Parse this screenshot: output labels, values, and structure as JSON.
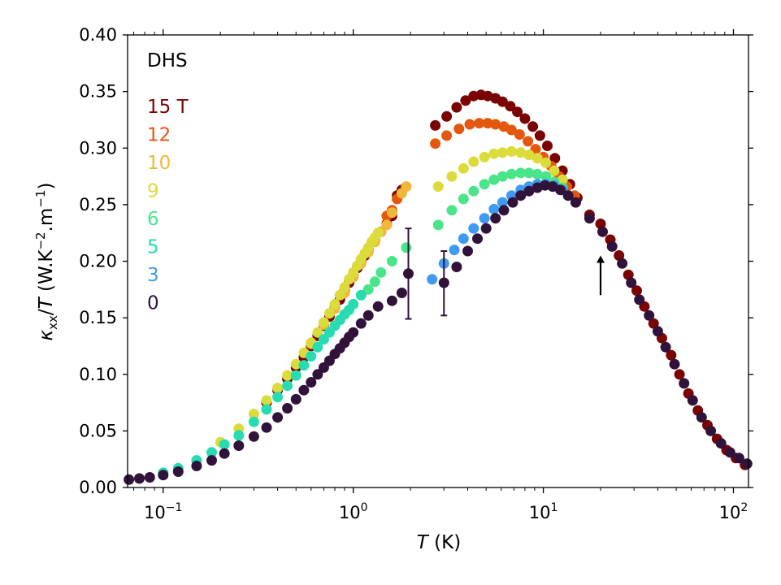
{
  "chart_data": {
    "type": "scatter",
    "title": "",
    "annotation_label": "DHS",
    "xscale": "log",
    "xlim": [
      0.065,
      120
    ],
    "ylim": [
      0.0,
      0.4
    ],
    "xlabel": {
      "var": "T",
      "unit": " (K)"
    },
    "ylabel": {
      "kappa": "κ",
      "sub": "xx",
      "slash": "/",
      "var": "T",
      "unit1": " (W.K",
      "exp1": "−2",
      "unit2": ".m",
      "exp2": "−1",
      "close": ")"
    },
    "x_ticks": [
      {
        "value": 0.1,
        "base": "10",
        "exp": "−1"
      },
      {
        "value": 1,
        "base": "10",
        "exp": "0"
      },
      {
        "value": 10,
        "base": "10",
        "exp": "1"
      },
      {
        "value": 100,
        "base": "10",
        "exp": "2"
      }
    ],
    "y_ticks": [
      {
        "value": 0.0,
        "label": "0.00"
      },
      {
        "value": 0.05,
        "label": "0.05"
      },
      {
        "value": 0.1,
        "label": "0.10"
      },
      {
        "value": 0.15,
        "label": "0.15"
      },
      {
        "value": 0.2,
        "label": "0.20"
      },
      {
        "value": 0.25,
        "label": "0.25"
      },
      {
        "value": 0.3,
        "label": "0.30"
      },
      {
        "value": 0.35,
        "label": "0.35"
      },
      {
        "value": 0.4,
        "label": "0.40"
      }
    ],
    "legend": [
      {
        "label": "15 T",
        "color": "#7a0403"
      },
      {
        "label": "12",
        "color": "#e4570f"
      },
      {
        "label": "10",
        "color": "#f0b83a"
      },
      {
        "label": "9",
        "color": "#dbdc3c"
      },
      {
        "label": "6",
        "color": "#4ae58a"
      },
      {
        "label": "5",
        "color": "#26dcb0"
      },
      {
        "label": "3",
        "color": "#3f9bf0"
      },
      {
        "label": "0",
        "color": "#30123b"
      }
    ],
    "series": [
      {
        "name": "15 T",
        "color": "#7a0403",
        "points": [
          [
            2.7,
            0.32
          ],
          [
            3.1,
            0.328
          ],
          [
            3.5,
            0.336
          ],
          [
            3.9,
            0.342
          ],
          [
            4.3,
            0.346
          ],
          [
            4.7,
            0.347
          ],
          [
            5.1,
            0.346
          ],
          [
            5.6,
            0.344
          ],
          [
            6.1,
            0.341
          ],
          [
            6.7,
            0.337
          ],
          [
            7.3,
            0.332
          ],
          [
            8.0,
            0.326
          ],
          [
            8.8,
            0.319
          ],
          [
            9.6,
            0.311
          ],
          [
            10.5,
            0.302
          ],
          [
            11.5,
            0.291
          ],
          [
            12.6,
            0.28
          ],
          [
            13.8,
            0.268
          ],
          [
            15.1,
            0.256
          ],
          [
            17.5,
            0.241
          ],
          [
            20.0,
            0.233
          ],
          [
            22.5,
            0.219
          ],
          [
            25.0,
            0.205
          ],
          [
            28.0,
            0.188
          ],
          [
            31.0,
            0.174
          ],
          [
            34.0,
            0.16
          ],
          [
            38.0,
            0.145
          ],
          [
            42.0,
            0.132
          ],
          [
            47.0,
            0.117
          ],
          [
            52.0,
            0.1
          ],
          [
            58.0,
            0.083
          ],
          [
            65.0,
            0.068
          ],
          [
            73.0,
            0.055
          ],
          [
            82.0,
            0.043
          ],
          [
            92.0,
            0.033
          ],
          [
            103.0,
            0.026
          ],
          [
            115.0,
            0.02
          ],
          [
            0.35,
            0.075
          ],
          [
            0.4,
            0.086
          ],
          [
            0.45,
            0.096
          ],
          [
            0.5,
            0.106
          ],
          [
            0.55,
            0.115
          ],
          [
            0.6,
            0.125
          ],
          [
            0.65,
            0.134
          ],
          [
            0.7,
            0.143
          ],
          [
            0.75,
            0.151
          ],
          [
            0.8,
            0.159
          ],
          [
            0.85,
            0.166
          ],
          [
            0.9,
            0.174
          ],
          [
            0.95,
            0.181
          ],
          [
            1.0,
            0.188
          ],
          [
            1.05,
            0.194
          ],
          [
            1.1,
            0.2
          ],
          [
            1.15,
            0.205
          ],
          [
            1.2,
            0.21
          ],
          [
            1.3,
            0.219
          ],
          [
            1.4,
            0.226
          ],
          [
            1.5,
            0.233
          ],
          [
            1.6,
            0.24
          ],
          [
            1.7,
            0.258
          ],
          [
            1.8,
            0.263
          ]
        ]
      },
      {
        "name": "12",
        "color": "#e4570f",
        "points": [
          [
            2.7,
            0.304
          ],
          [
            3.1,
            0.311
          ],
          [
            3.6,
            0.317
          ],
          [
            4.1,
            0.321
          ],
          [
            4.6,
            0.322
          ],
          [
            5.1,
            0.322
          ],
          [
            5.6,
            0.321
          ],
          [
            6.2,
            0.319
          ],
          [
            6.8,
            0.316
          ],
          [
            7.5,
            0.312
          ],
          [
            8.3,
            0.306
          ],
          [
            9.1,
            0.299
          ],
          [
            10.0,
            0.292
          ],
          [
            11.0,
            0.284
          ],
          [
            12.1,
            0.275
          ],
          [
            13.3,
            0.266
          ],
          [
            14.6,
            0.258
          ],
          [
            1.5,
            0.24
          ],
          [
            1.6,
            0.245
          ],
          [
            1.7,
            0.255
          ]
        ]
      },
      {
        "name": "10",
        "color": "#f0b83a",
        "points": [
          [
            0.6,
            0.127
          ],
          [
            0.7,
            0.144
          ],
          [
            0.8,
            0.158
          ],
          [
            0.9,
            0.172
          ],
          [
            1.0,
            0.186
          ],
          [
            1.1,
            0.198
          ],
          [
            1.2,
            0.208
          ],
          [
            1.3,
            0.217
          ],
          [
            1.4,
            0.226
          ],
          [
            1.5,
            0.232
          ],
          [
            1.6,
            0.243
          ],
          [
            1.8,
            0.26
          ],
          [
            1.9,
            0.266
          ]
        ]
      },
      {
        "name": "9",
        "color": "#dbdc3c",
        "points": [
          [
            2.8,
            0.266
          ],
          [
            3.3,
            0.275
          ],
          [
            3.8,
            0.282
          ],
          [
            4.3,
            0.288
          ],
          [
            4.9,
            0.292
          ],
          [
            5.5,
            0.295
          ],
          [
            6.1,
            0.296
          ],
          [
            6.8,
            0.297
          ],
          [
            7.6,
            0.296
          ],
          [
            8.4,
            0.294
          ],
          [
            9.3,
            0.291
          ],
          [
            10.3,
            0.287
          ],
          [
            11.4,
            0.28
          ],
          [
            12.6,
            0.272
          ],
          [
            0.2,
            0.04
          ],
          [
            0.25,
            0.052
          ],
          [
            0.3,
            0.065
          ],
          [
            0.35,
            0.077
          ],
          [
            0.4,
            0.088
          ],
          [
            0.45,
            0.099
          ],
          [
            0.5,
            0.109
          ],
          [
            0.55,
            0.119
          ],
          [
            0.6,
            0.128
          ],
          [
            0.65,
            0.137
          ],
          [
            0.7,
            0.146
          ],
          [
            0.75,
            0.154
          ],
          [
            0.8,
            0.162
          ],
          [
            0.85,
            0.17
          ],
          [
            0.9,
            0.177
          ],
          [
            0.95,
            0.184
          ],
          [
            1.0,
            0.19
          ],
          [
            1.05,
            0.196
          ],
          [
            1.1,
            0.202
          ],
          [
            1.15,
            0.207
          ],
          [
            1.2,
            0.212
          ],
          [
            1.25,
            0.217
          ],
          [
            1.3,
            0.221
          ],
          [
            1.35,
            0.225
          ]
        ]
      },
      {
        "name": "6",
        "color": "#4ae58a",
        "points": [
          [
            2.8,
            0.232
          ],
          [
            3.3,
            0.245
          ],
          [
            3.8,
            0.255
          ],
          [
            4.3,
            0.262
          ],
          [
            4.9,
            0.268
          ],
          [
            5.5,
            0.272
          ],
          [
            6.1,
            0.275
          ],
          [
            6.8,
            0.277
          ],
          [
            7.6,
            0.278
          ],
          [
            8.4,
            0.278
          ],
          [
            9.3,
            0.277
          ],
          [
            10.3,
            0.275
          ],
          [
            11.4,
            0.27
          ],
          [
            12.6,
            0.265
          ],
          [
            1.2,
            0.175
          ],
          [
            1.3,
            0.182
          ],
          [
            1.4,
            0.19
          ],
          [
            1.6,
            0.2
          ],
          [
            1.9,
            0.212
          ]
        ]
      },
      {
        "name": "5",
        "color": "#26dcb0",
        "points": [
          [
            0.1,
            0.013
          ],
          [
            0.12,
            0.017
          ],
          [
            0.15,
            0.024
          ],
          [
            0.18,
            0.031
          ],
          [
            0.21,
            0.038
          ],
          [
            0.25,
            0.046
          ],
          [
            0.3,
            0.058
          ],
          [
            0.35,
            0.069
          ],
          [
            0.4,
            0.08
          ],
          [
            0.45,
            0.09
          ],
          [
            0.5,
            0.099
          ],
          [
            0.55,
            0.108
          ],
          [
            0.6,
            0.116
          ],
          [
            0.65,
            0.124
          ],
          [
            0.7,
            0.131
          ],
          [
            0.75,
            0.137
          ],
          [
            0.8,
            0.143
          ],
          [
            0.85,
            0.148
          ],
          [
            0.9,
            0.153
          ],
          [
            0.95,
            0.157
          ],
          [
            1.0,
            0.162
          ],
          [
            1.1,
            0.17
          ]
        ]
      },
      {
        "name": "3",
        "color": "#3f9bf0",
        "points": [
          [
            2.6,
            0.184
          ],
          [
            3.0,
            0.198
          ],
          [
            3.4,
            0.21
          ],
          [
            3.8,
            0.22
          ],
          [
            4.3,
            0.229
          ],
          [
            4.9,
            0.238
          ],
          [
            5.5,
            0.246
          ],
          [
            6.1,
            0.252
          ],
          [
            6.8,
            0.258
          ],
          [
            7.6,
            0.263
          ],
          [
            8.4,
            0.266
          ],
          [
            9.3,
            0.268
          ],
          [
            10.3,
            0.268
          ],
          [
            11.4,
            0.267
          ],
          [
            12.6,
            0.263
          ]
        ]
      },
      {
        "name": "0",
        "color": "#30123b",
        "points": [
          [
            0.066,
            0.007
          ],
          [
            0.075,
            0.008
          ],
          [
            0.085,
            0.009
          ],
          [
            0.1,
            0.011
          ],
          [
            0.12,
            0.014
          ],
          [
            0.15,
            0.019
          ],
          [
            0.18,
            0.024
          ],
          [
            0.21,
            0.03
          ],
          [
            0.25,
            0.037
          ],
          [
            0.3,
            0.045
          ],
          [
            0.35,
            0.053
          ],
          [
            0.4,
            0.062
          ],
          [
            0.45,
            0.07
          ],
          [
            0.5,
            0.078
          ],
          [
            0.55,
            0.086
          ],
          [
            0.6,
            0.093
          ],
          [
            0.65,
            0.1
          ],
          [
            0.7,
            0.106
          ],
          [
            0.75,
            0.112
          ],
          [
            0.8,
            0.118
          ],
          [
            0.85,
            0.123
          ],
          [
            0.9,
            0.128
          ],
          [
            0.95,
            0.133
          ],
          [
            1.0,
            0.137
          ],
          [
            1.1,
            0.145
          ],
          [
            1.2,
            0.152
          ],
          [
            1.35,
            0.16
          ],
          [
            1.6,
            0.165
          ],
          [
            1.8,
            0.172
          ],
          [
            1.95,
            0.189
          ],
          [
            3.0,
            0.181
          ],
          [
            3.5,
            0.195
          ],
          [
            4.0,
            0.209
          ],
          [
            4.5,
            0.22
          ],
          [
            5.0,
            0.229
          ],
          [
            5.6,
            0.238
          ],
          [
            6.2,
            0.245
          ],
          [
            6.9,
            0.252
          ],
          [
            7.6,
            0.258
          ],
          [
            8.4,
            0.262
          ],
          [
            9.3,
            0.265
          ],
          [
            10.2,
            0.267
          ],
          [
            11.2,
            0.266
          ],
          [
            12.3,
            0.263
          ],
          [
            13.5,
            0.258
          ],
          [
            14.8,
            0.252
          ],
          [
            17.5,
            0.238
          ],
          [
            20.5,
            0.226
          ],
          [
            23.0,
            0.213
          ],
          [
            26.0,
            0.198
          ],
          [
            29.0,
            0.181
          ],
          [
            32.0,
            0.166
          ],
          [
            36.0,
            0.152
          ],
          [
            40.0,
            0.138
          ],
          [
            44.0,
            0.124
          ],
          [
            49.0,
            0.109
          ],
          [
            55.0,
            0.092
          ],
          [
            61.0,
            0.077
          ],
          [
            68.0,
            0.062
          ],
          [
            76.0,
            0.05
          ],
          [
            86.0,
            0.039
          ],
          [
            96.0,
            0.031
          ],
          [
            107.0,
            0.026
          ],
          [
            118.0,
            0.021
          ]
        ]
      }
    ],
    "error_bars": [
      {
        "x": 1.95,
        "y": 0.189,
        "ylow": 0.149,
        "yhigh": 0.229,
        "color": "#30123b"
      },
      {
        "x": 3.0,
        "y": 0.181,
        "ylow": 0.152,
        "yhigh": 0.209,
        "color": "#30123b"
      }
    ],
    "arrow": {
      "x": 20.0,
      "y_from": 0.17,
      "y_to": 0.205
    }
  }
}
